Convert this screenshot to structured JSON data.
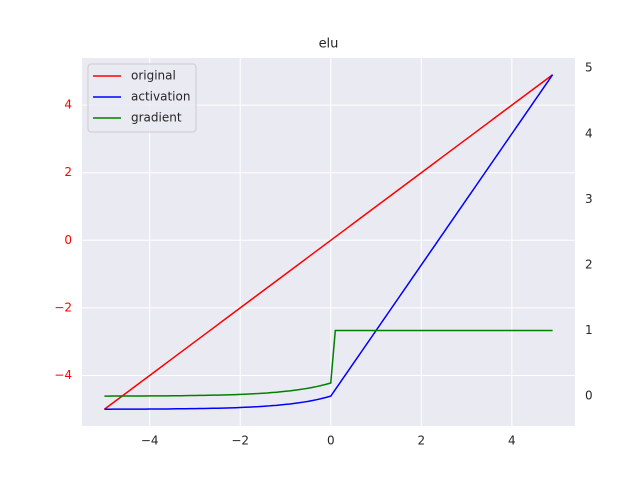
{
  "chart_data": {
    "type": "line",
    "title": "elu",
    "x": [
      -5,
      -4.9,
      -4.8,
      -4.7,
      -4.6,
      -4.5,
      -4.4,
      -4.3,
      -4.2,
      -4.1,
      -4,
      -3.9,
      -3.8,
      -3.7,
      -3.6,
      -3.5,
      -3.4,
      -3.3,
      -3.2,
      -3.1,
      -3,
      -2.9,
      -2.8,
      -2.7,
      -2.6,
      -2.5,
      -2.4,
      -2.3,
      -2.2,
      -2.1,
      -2,
      -1.9,
      -1.8,
      -1.7,
      -1.6,
      -1.5,
      -1.4,
      -1.3,
      -1.2,
      -1.1,
      -1,
      -0.9,
      -0.8,
      -0.7,
      -0.6,
      -0.5,
      -0.4,
      -0.3,
      -0.2,
      -0.1,
      0,
      0.1,
      0.2,
      0.3,
      0.4,
      0.5,
      0.6,
      0.7,
      0.8,
      0.9,
      1,
      1.1,
      1.2,
      1.3,
      1.4,
      1.5,
      1.6,
      1.7,
      1.8,
      1.9,
      2,
      2.1,
      2.2,
      2.3,
      2.4,
      2.5,
      2.6,
      2.7,
      2.8,
      2.9,
      3,
      3.1,
      3.2,
      3.3,
      3.4,
      3.5,
      3.6,
      3.7,
      3.8,
      3.9,
      4,
      4.1,
      4.2,
      4.3,
      4.4,
      4.5,
      4.6,
      4.7,
      4.8,
      4.9
    ],
    "series": [
      {
        "name": "original",
        "color": "#ff0000",
        "values": [
          -5,
          -4.9,
          -4.8,
          -4.7,
          -4.6,
          -4.5,
          -4.4,
          -4.3,
          -4.2,
          -4.1,
          -4,
          -3.9,
          -3.8,
          -3.7,
          -3.6,
          -3.5,
          -3.4,
          -3.3,
          -3.2,
          -3.1,
          -3,
          -2.9,
          -2.8,
          -2.7,
          -2.6,
          -2.5,
          -2.4,
          -2.3,
          -2.2,
          -2.1,
          -2,
          -1.9,
          -1.8,
          -1.7,
          -1.6,
          -1.5,
          -1.4,
          -1.3,
          -1.2,
          -1.1,
          -1,
          -0.9,
          -0.8,
          -0.7,
          -0.6,
          -0.5,
          -0.4,
          -0.3,
          -0.2,
          -0.1,
          0,
          0.1,
          0.2,
          0.3,
          0.4,
          0.5,
          0.6,
          0.7,
          0.8,
          0.9,
          1,
          1.1,
          1.2,
          1.3,
          1.4,
          1.5,
          1.6,
          1.7,
          1.8,
          1.9,
          2,
          2.1,
          2.2,
          2.3,
          2.4,
          2.5,
          2.6,
          2.7,
          2.8,
          2.9,
          3,
          3.1,
          3.2,
          3.3,
          3.4,
          3.5,
          3.6,
          3.7,
          3.8,
          3.9,
          4,
          4.1,
          4.2,
          4.3,
          4.4,
          4.5,
          4.6,
          4.7,
          4.8,
          4.9
        ]
      },
      {
        "name": "activation",
        "color": "#0000ff",
        "axis": "y2",
        "values": [
          -0.199,
          -0.199,
          -0.198,
          -0.198,
          -0.198,
          -0.198,
          -0.198,
          -0.197,
          -0.197,
          -0.197,
          -0.196,
          -0.196,
          -0.196,
          -0.195,
          -0.195,
          -0.194,
          -0.193,
          -0.193,
          -0.192,
          -0.191,
          -0.19,
          -0.189,
          -0.188,
          -0.187,
          -0.185,
          -0.184,
          -0.182,
          -0.18,
          -0.178,
          -0.176,
          -0.173,
          -0.17,
          -0.167,
          -0.163,
          -0.16,
          -0.155,
          -0.151,
          -0.145,
          -0.14,
          -0.133,
          -0.126,
          -0.119,
          -0.11,
          -0.101,
          -0.09,
          -0.079,
          -0.066,
          -0.052,
          -0.036,
          -0.019,
          0,
          0.1,
          0.2,
          0.3,
          0.4,
          0.5,
          0.6,
          0.7,
          0.8,
          0.9,
          1,
          1.1,
          1.2,
          1.3,
          1.4,
          1.5,
          1.6,
          1.7,
          1.8,
          1.9,
          2,
          2.1,
          2.2,
          2.3,
          2.4,
          2.5,
          2.6,
          2.7,
          2.8,
          2.9,
          3,
          3.1,
          3.2,
          3.3,
          3.4,
          3.5,
          3.6,
          3.7,
          3.8,
          3.9,
          4,
          4.1,
          4.2,
          4.3,
          4.4,
          4.5,
          4.6,
          4.7,
          4.8,
          4.9
        ]
      },
      {
        "name": "gradient",
        "color": "#008000",
        "axis": "y2",
        "values": [
          0.001,
          0.001,
          0.002,
          0.002,
          0.002,
          0.002,
          0.002,
          0.003,
          0.003,
          0.003,
          0.004,
          0.004,
          0.004,
          0.005,
          0.005,
          0.006,
          0.007,
          0.007,
          0.008,
          0.009,
          0.01,
          0.011,
          0.012,
          0.013,
          0.015,
          0.016,
          0.018,
          0.02,
          0.022,
          0.024,
          0.027,
          0.03,
          0.033,
          0.037,
          0.04,
          0.045,
          0.049,
          0.055,
          0.06,
          0.067,
          0.074,
          0.081,
          0.09,
          0.099,
          0.11,
          0.121,
          0.134,
          0.148,
          0.164,
          0.181,
          0.2,
          1,
          1,
          1,
          1,
          1,
          1,
          1,
          1,
          1,
          1,
          1,
          1,
          1,
          1,
          1,
          1,
          1,
          1,
          1,
          1,
          1,
          1,
          1,
          1,
          1,
          1,
          1,
          1,
          1,
          1,
          1,
          1,
          1,
          1,
          1,
          1,
          1,
          1,
          1,
          1,
          1,
          1,
          1,
          1,
          1,
          1,
          1,
          1,
          1
        ]
      }
    ],
    "xlim": [
      -5.495,
      5.395
    ],
    "xticks": [
      {
        "value": -4,
        "label": "−4"
      },
      {
        "value": -2,
        "label": "−2"
      },
      0,
      2,
      4
    ],
    "ylim": [
      -5.495,
      5.395
    ],
    "yticks": [
      {
        "value": -4,
        "label": "−4"
      },
      {
        "value": -2,
        "label": "−2"
      },
      0,
      2,
      4
    ],
    "ytick_color": "#ff0000",
    "y2lim": [
      -0.455,
      5.155
    ],
    "y2ticks": [
      0,
      1,
      2,
      3,
      4,
      5
    ],
    "grid": true,
    "legend": "upper left"
  }
}
